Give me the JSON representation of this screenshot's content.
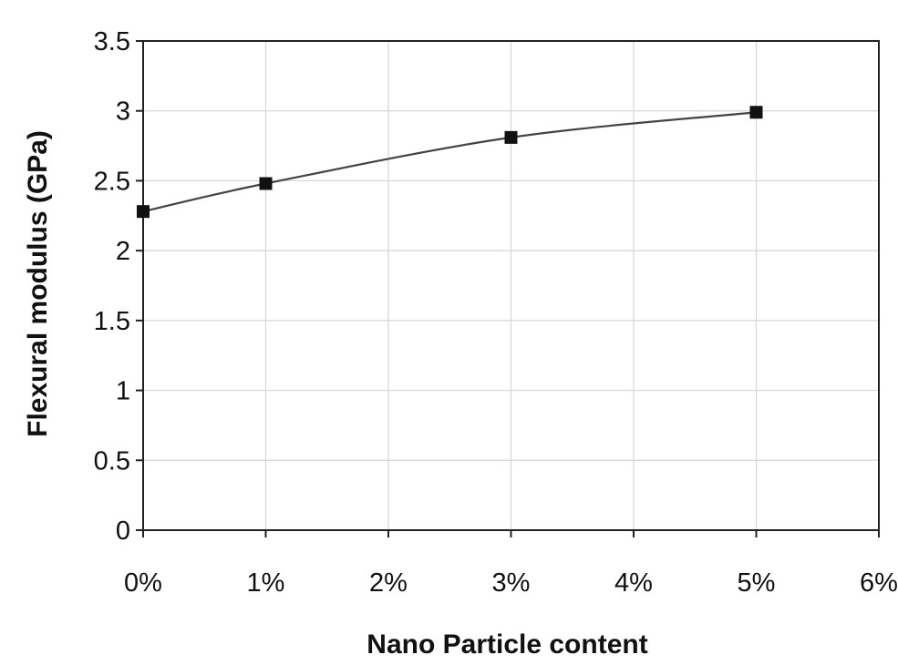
{
  "chart_data": {
    "type": "line",
    "title": "",
    "xlabel": "Nano Particle content",
    "ylabel": "Flexural modulus (GPa)",
    "x": [
      0,
      1,
      3,
      5
    ],
    "series": [
      {
        "values": [
          2.28,
          2.48,
          2.81,
          2.99
        ]
      }
    ],
    "xlim": [
      0,
      6
    ],
    "ylim": [
      0,
      3.5
    ],
    "xticks": [
      "0%",
      "1%",
      "2%",
      "3%",
      "4%",
      "5%",
      "6%"
    ],
    "yticks": [
      "0",
      "0.5",
      "1",
      "1.5",
      "2",
      "2.5",
      "3",
      "3.5"
    ],
    "grid": true,
    "legend": "none",
    "line_color": "#444444",
    "marker_color": "#111111",
    "marker": "square",
    "smooth": true
  }
}
